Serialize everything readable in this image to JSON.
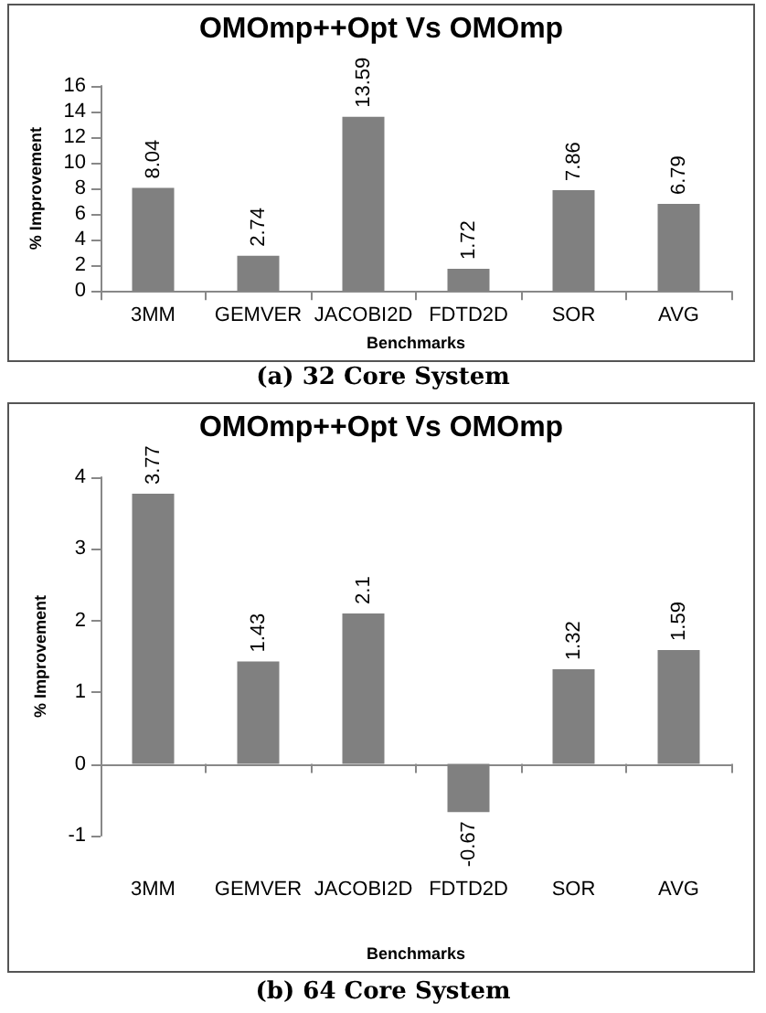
{
  "chart_data": [
    {
      "type": "bar",
      "title": "OMOmp++Opt Vs OMOmp",
      "xlabel": "Benchmarks",
      "ylabel": "% Improvement",
      "categories": [
        "3MM",
        "GEMVER",
        "JACOBI2D",
        "FDTD2D",
        "SOR",
        "AVG"
      ],
      "values": [
        8.04,
        2.74,
        13.59,
        1.72,
        7.86,
        6.79
      ],
      "color": "#808080",
      "ylim": [
        0,
        16
      ],
      "yticks": [
        0,
        2,
        4,
        6,
        8,
        10,
        12,
        14,
        16
      ],
      "data_labels": true,
      "annotations": [
        "(a) 32 Core System"
      ]
    },
    {
      "type": "bar",
      "title": "OMOmp++Opt Vs OMOmp",
      "xlabel": "Benchmarks",
      "ylabel": "% Improvement",
      "categories": [
        "3MM",
        "GEMVER",
        "JACOBI2D",
        "FDTD2D",
        "SOR",
        "AVG"
      ],
      "values": [
        3.77,
        1.43,
        2.1,
        -0.67,
        1.32,
        1.59
      ],
      "color": "#808080",
      "ylim": [
        -1,
        4
      ],
      "yticks": [
        -1,
        0,
        1,
        2,
        3,
        4
      ],
      "data_labels": true,
      "annotations": [
        "(b) 64 Core System"
      ]
    }
  ]
}
